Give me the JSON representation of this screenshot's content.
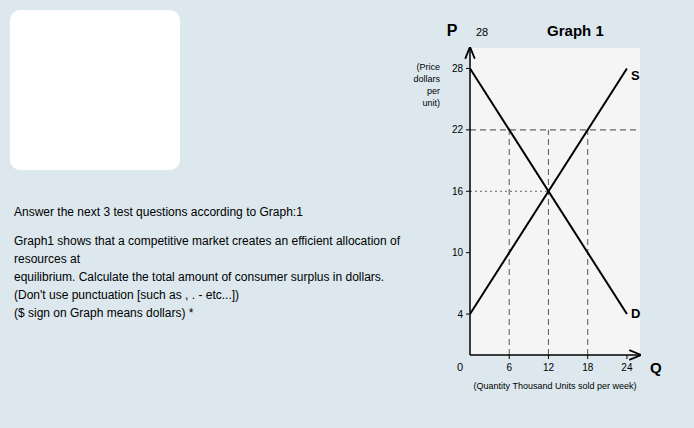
{
  "chart_data": {
    "type": "line",
    "title": "Graph 1",
    "x_label": "Q",
    "x_label_sub": "(Quantity Thousand Units sold per week)",
    "y_label": "P",
    "y_label_sub": "(Price\ndollars\nper\nunit)",
    "origin_label": "0",
    "top_label": "28",
    "x": [
      0,
      24
    ],
    "series": [
      {
        "name": "S",
        "color": "#000000",
        "values": [
          4,
          28
        ]
      },
      {
        "name": "D",
        "color": "#000000",
        "values": [
          28,
          4
        ]
      }
    ],
    "equilibrium": [
      12,
      16
    ],
    "dashed_horizontal_y": 22,
    "dashed_vertical_xs": [
      6,
      12,
      18
    ],
    "xlim": [
      0,
      26
    ],
    "ylim": [
      0,
      30
    ],
    "xticks": [
      6,
      12,
      18,
      24
    ],
    "yticks": [
      4,
      10,
      16,
      22,
      28
    ],
    "grid": false,
    "notes": [
      "Answer the next 3 test questions according to Graph:1",
      "Graph1 shows that a competitive market creates an efficient allocation of resources at\nequilibrium. Calculate the total amount of consumer surplus in dollars.\n(Don't use punctuation [such as , . - etc...])\n($ sign on Graph means dollars) *"
    ]
  }
}
